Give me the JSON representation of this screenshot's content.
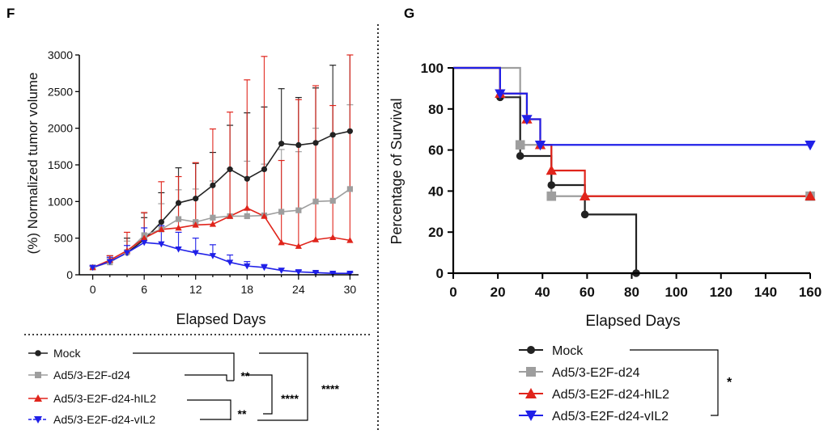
{
  "panels": {
    "left_label": "F",
    "right_label": "G"
  },
  "colors": {
    "mock": "#222222",
    "e2f": "#9e9e9e",
    "hil2": "#e0241b",
    "vil2": "#2020e8"
  },
  "significance": {
    "left_pair_1": "**",
    "left_pair_2": "**",
    "left_group_1": "****",
    "left_group_2": "****",
    "right_bracket": "*"
  },
  "chart_data": [
    {
      "type": "line",
      "panel": "F",
      "xlabel": "Elapsed Days",
      "ylabel": "(%) Normalized tumor volume",
      "xlim": [
        -1,
        31
      ],
      "ylim": [
        0,
        3000
      ],
      "xticks": [
        0,
        6,
        12,
        18,
        24,
        30
      ],
      "yticks": [
        0,
        500,
        1000,
        1500,
        2000,
        2500,
        3000
      ],
      "legend_position": "bottom",
      "series": [
        {
          "name": "Mock",
          "marker": "circle",
          "color_key": "mock",
          "x": [
            0,
            2,
            4,
            6,
            8,
            10,
            12,
            14,
            16,
            18,
            20,
            22,
            24,
            26,
            28,
            30
          ],
          "y": [
            100,
            180,
            300,
            480,
            720,
            980,
            1040,
            1220,
            1440,
            1310,
            1440,
            1790,
            1770,
            1800,
            1910,
            1960
          ],
          "err": [
            20,
            80,
            200,
            300,
            400,
            480,
            480,
            450,
            600,
            900,
            850,
            750,
            650,
            750,
            950,
            1050
          ]
        },
        {
          "name": "Ad5/3-E2F-d24",
          "marker": "square",
          "color_key": "e2f",
          "x": [
            0,
            2,
            4,
            6,
            8,
            10,
            12,
            14,
            16,
            18,
            20,
            22,
            24,
            26,
            28,
            30
          ],
          "y": [
            100,
            170,
            310,
            540,
            620,
            760,
            720,
            780,
            800,
            800,
            810,
            860,
            880,
            1000,
            1010,
            1170
          ],
          "err": [
            20,
            60,
            150,
            300,
            350,
            400,
            450,
            500,
            650,
            750,
            700,
            850,
            800,
            1000,
            900,
            1150
          ]
        },
        {
          "name": "Ad5/3-E2F-d24-hIL2",
          "marker": "triangle-up",
          "color_key": "hil2",
          "x": [
            0,
            2,
            4,
            6,
            8,
            10,
            12,
            14,
            16,
            18,
            20,
            22,
            24,
            26,
            28,
            30
          ],
          "y": [
            100,
            200,
            330,
            500,
            620,
            640,
            680,
            690,
            800,
            910,
            800,
            440,
            390,
            480,
            510,
            470
          ],
          "err": [
            20,
            60,
            250,
            350,
            650,
            700,
            850,
            1300,
            1420,
            1750,
            2180,
            1120,
            2000,
            2100,
            1800,
            2530
          ]
        },
        {
          "name": "Ad5/3-E2F-d24-vIL2",
          "marker": "triangle-down",
          "color_key": "vil2",
          "x": [
            0,
            2,
            4,
            6,
            8,
            10,
            12,
            14,
            16,
            18,
            20,
            22,
            24,
            26,
            28,
            30
          ],
          "y": [
            100,
            180,
            300,
            440,
            420,
            350,
            300,
            260,
            170,
            120,
            100,
            60,
            40,
            30,
            20,
            20
          ],
          "err": [
            20,
            60,
            100,
            200,
            250,
            230,
            200,
            150,
            100,
            60,
            40,
            30,
            20,
            10,
            10,
            10
          ]
        }
      ]
    },
    {
      "type": "line",
      "panel": "G",
      "subtype": "step-survival",
      "xlabel": "Elapsed Days",
      "ylabel": "Percentage of Survival",
      "xlim": [
        0,
        160
      ],
      "ylim": [
        0,
        100
      ],
      "xticks": [
        0,
        20,
        40,
        60,
        80,
        100,
        120,
        140,
        160
      ],
      "yticks": [
        0,
        20,
        40,
        60,
        80,
        100
      ],
      "legend_position": "bottom",
      "series": [
        {
          "name": "Mock",
          "marker": "circle",
          "color_key": "mock",
          "x": [
            0,
            21,
            30,
            44,
            59,
            82
          ],
          "y": [
            100,
            85.7,
            57.1,
            42.9,
            28.6,
            0
          ]
        },
        {
          "name": "Ad5/3-E2F-d24",
          "marker": "square",
          "color_key": "e2f",
          "x": [
            0,
            30,
            44,
            160
          ],
          "y": [
            100,
            62.5,
            37.5,
            37.5
          ]
        },
        {
          "name": "Ad5/3-E2F-d24-hIL2",
          "marker": "triangle-up",
          "color_key": "hil2",
          "x": [
            0,
            21,
            33,
            39,
            44,
            59,
            160
          ],
          "y": [
            100,
            87.5,
            75,
            62.5,
            50,
            37.5,
            37.5
          ]
        },
        {
          "name": "Ad5/3-E2F-d24-vIL2",
          "marker": "triangle-down",
          "color_key": "vil2",
          "x": [
            0,
            21,
            33,
            39,
            160
          ],
          "y": [
            100,
            87.5,
            75,
            62.5,
            62.5
          ]
        }
      ]
    }
  ]
}
